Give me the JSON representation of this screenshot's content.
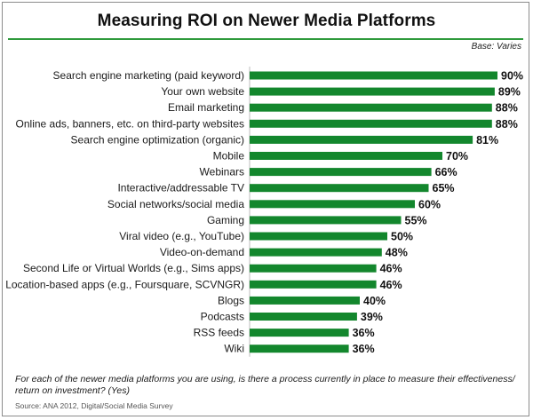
{
  "chart_data": {
    "type": "bar",
    "orientation": "horizontal",
    "title": "Measuring ROI on Newer Media Platforms",
    "base_note": "Base: Varies",
    "categories": [
      "Search engine marketing (paid keyword)",
      "Your own website",
      "Email marketing",
      "Online ads, banners, etc. on third-party websites",
      "Search engine optimization (organic)",
      "Mobile",
      "Webinars",
      "Interactive/addressable TV",
      "Social networks/social media",
      "Gaming",
      "Viral video (e.g., YouTube)",
      "Video-on-demand",
      "Second Life or Virtual Worlds (e.g., Sims apps)",
      "Location-based apps (e.g., Foursquare, SCVNGR)",
      "Blogs",
      "Podcasts",
      "RSS feeds",
      "Wiki"
    ],
    "values": [
      90,
      89,
      88,
      88,
      81,
      70,
      66,
      65,
      60,
      55,
      50,
      48,
      46,
      46,
      40,
      39,
      36,
      36
    ],
    "value_labels": [
      "90%",
      "89%",
      "88%",
      "88%",
      "81%",
      "70%",
      "66%",
      "65%",
      "60%",
      "55%",
      "50%",
      "48%",
      "46%",
      "46%",
      "40%",
      "39%",
      "36%",
      "36%"
    ],
    "unit": "%",
    "xlim": [
      0,
      100
    ],
    "grid": false,
    "legend": false,
    "bar_color": "#13872d"
  },
  "footnote": "For each of the newer media platforms you are using, is there a process currently in place to measure their effectiveness/ return on investment? (Yes)",
  "source": "Source: ANA 2012, Digital/Social Media Survey"
}
